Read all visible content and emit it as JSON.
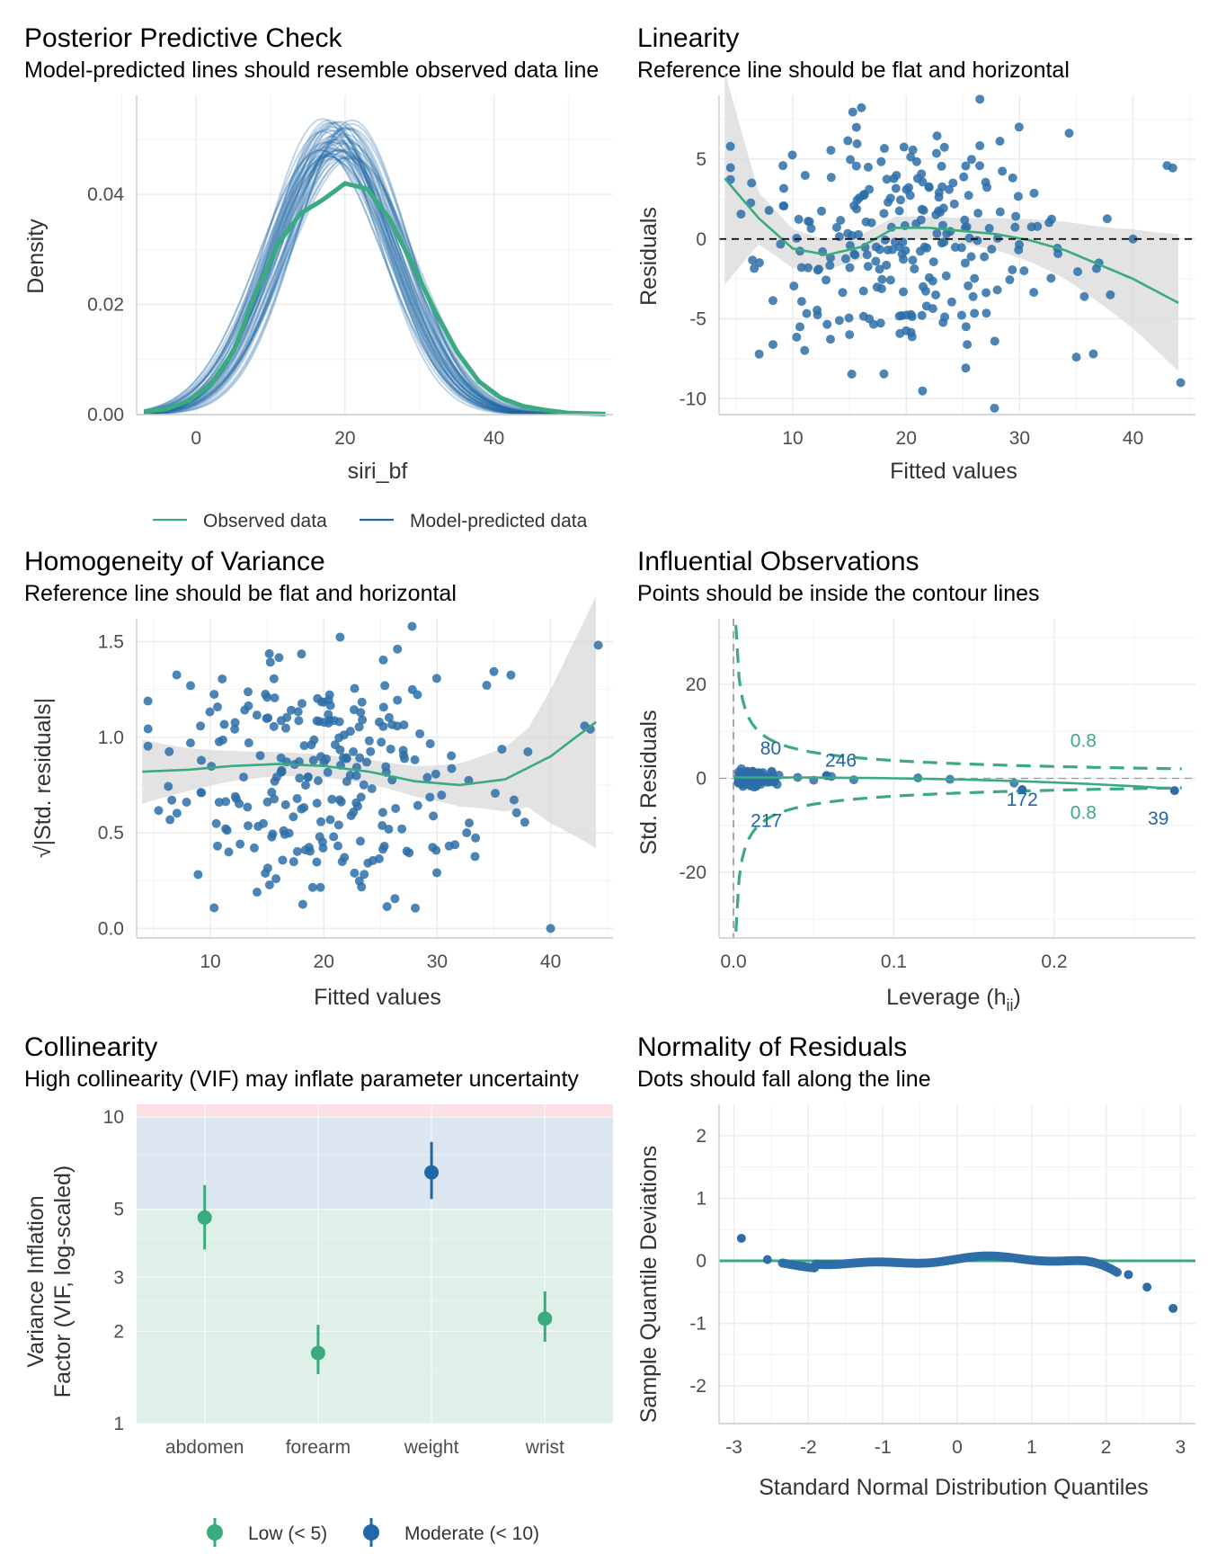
{
  "colors": {
    "observed": "#3aaa7f",
    "predicted": "#1f67a6",
    "point": "#2d6ea8",
    "ribbon": "#d9d9d9",
    "zone_low": "#dff0e8",
    "zone_moderate": "#dbe6f1",
    "zone_high": "#fbe0e4"
  },
  "panels": {
    "ppc": {
      "title": "Posterior Predictive Check",
      "subtitle": "Model-predicted lines should resemble observed data line",
      "xlabel": "siri_bf",
      "ylabel": "Density",
      "legend": [
        "Observed data",
        "Model-predicted data"
      ]
    },
    "linearity": {
      "title": "Linearity",
      "subtitle": "Reference line should be flat and horizontal",
      "xlabel": "Fitted values",
      "ylabel": "Residuals"
    },
    "homogeneity": {
      "title": "Homogeneity of Variance",
      "subtitle": "Reference line should be flat and horizontal",
      "xlabel": "Fitted values",
      "ylabel": "√|Std. residuals|"
    },
    "influential": {
      "title": "Influential Observations",
      "subtitle": "Points should be inside the contour lines",
      "xlabel": "Leverage (h",
      "xlabel_sub": "ii",
      "xlabel_end": ")",
      "ylabel": "Std. Residuals"
    },
    "collinearity": {
      "title": "Collinearity",
      "subtitle": "High collinearity (VIF) may inflate parameter uncertainty",
      "ylabel_line1": "Variance Inflation",
      "ylabel_line2": "Factor (VIF, log-scaled)",
      "legend": [
        "Low (< 5)",
        "Moderate (< 10)"
      ]
    },
    "normality": {
      "title": "Normality of Residuals",
      "subtitle": "Dots should fall along the line",
      "xlabel": "Standard Normal Distribution Quantiles",
      "ylabel": "Sample Quantile Deviations"
    }
  },
  "chart_data": [
    {
      "id": "ppc",
      "type": "line",
      "title": "Posterior Predictive Check",
      "xlabel": "siri_bf",
      "ylabel": "Density",
      "xlim": [
        -8,
        56
      ],
      "ylim": [
        0,
        0.058
      ],
      "x_ticks": [
        0,
        20,
        40
      ],
      "y_ticks": [
        0.0,
        0.02,
        0.04
      ],
      "y_tick_labels": [
        "0.00",
        "0.02",
        "0.04"
      ],
      "series": [
        {
          "name": "Observed data",
          "x": [
            -7,
            -4,
            -1,
            2,
            5,
            8,
            11,
            14,
            17,
            20,
            23,
            26,
            29,
            32,
            35,
            38,
            41,
            44,
            47,
            50,
            55
          ],
          "values": [
            0.0005,
            0.001,
            0.0025,
            0.0055,
            0.0115,
            0.022,
            0.031,
            0.0365,
            0.039,
            0.042,
            0.041,
            0.0355,
            0.0275,
            0.019,
            0.0115,
            0.006,
            0.003,
            0.0015,
            0.0008,
            0.0003,
            0.0001
          ]
        },
        {
          "name": "Model-predicted data",
          "draws": "~50 posterior predictive density curves peaking 0.041–0.054 near siri_bf 16–21"
        }
      ]
    },
    {
      "id": "linearity",
      "type": "scatter",
      "title": "Linearity",
      "xlabel": "Fitted values",
      "ylabel": "Residuals",
      "xlim": [
        3.5,
        45.5
      ],
      "ylim": [
        -11,
        9
      ],
      "x_ticks": [
        10,
        20,
        30,
        40
      ],
      "y_ticks": [
        -10,
        -5,
        0,
        5
      ],
      "reference_line": 0,
      "smooth": {
        "x": [
          4,
          7,
          10,
          13,
          16,
          19,
          22,
          25,
          28,
          31,
          34,
          37,
          40,
          44
        ],
        "values": [
          3.8,
          1.3,
          -0.6,
          -1.0,
          -0.5,
          0.7,
          0.7,
          0.5,
          0.3,
          -0.1,
          -0.7,
          -1.6,
          -2.5,
          -4.0
        ]
      },
      "n_points": 249
    },
    {
      "id": "homogeneity",
      "type": "scatter",
      "title": "Homogeneity of Variance",
      "xlabel": "Fitted values",
      "ylabel": "√|Std. residuals|",
      "xlim": [
        3.5,
        45.5
      ],
      "ylim": [
        -0.05,
        1.62
      ],
      "x_ticks": [
        10,
        20,
        30,
        40
      ],
      "y_ticks": [
        0.0,
        0.5,
        1.0,
        1.5
      ],
      "y_tick_labels": [
        "0.0",
        "0.5",
        "1.0",
        "1.5"
      ],
      "smooth": {
        "x": [
          4,
          8,
          12,
          16,
          20,
          24,
          28,
          32,
          36,
          40,
          44
        ],
        "values": [
          0.82,
          0.83,
          0.85,
          0.86,
          0.85,
          0.82,
          0.77,
          0.75,
          0.78,
          0.9,
          1.08
        ]
      },
      "n_points": 249
    },
    {
      "id": "influential",
      "type": "scatter",
      "title": "Influential Observations",
      "xlabel": "Leverage (hii)",
      "ylabel": "Std. Residuals",
      "xlim": [
        -0.009,
        0.288
      ],
      "ylim": [
        -34,
        34
      ],
      "x_ticks": [
        0.0,
        0.1,
        0.2
      ],
      "x_tick_labels": [
        "0.0",
        "0.1",
        "0.2"
      ],
      "y_ticks": [
        -20,
        0,
        20
      ],
      "cook_contour_level": 0.8,
      "labeled_points": [
        {
          "label": "80",
          "x": 0.012,
          "y": 1.5
        },
        {
          "label": "246",
          "x": 0.058,
          "y": 0.6
        },
        {
          "label": "217",
          "x": 0.011,
          "y": -1.5
        },
        {
          "label": "172",
          "x": 0.18,
          "y": -2.4
        },
        {
          "label": "39",
          "x": 0.275,
          "y": -2.6
        }
      ]
    },
    {
      "id": "collinearity",
      "type": "scatter",
      "title": "Collinearity",
      "ylabel": "Variance Inflation Factor (VIF, log-scaled)",
      "log_scale": true,
      "ylim": [
        1,
        11
      ],
      "y_ticks": [
        1,
        2,
        3,
        5,
        10
      ],
      "categories": [
        "abdomen",
        "forearm",
        "weight",
        "wrist"
      ],
      "values": [
        4.7,
        1.7,
        6.6,
        2.2
      ],
      "ci_low": [
        3.7,
        1.45,
        5.4,
        1.85
      ],
      "ci_high": [
        6.0,
        2.1,
        8.3,
        2.7
      ],
      "groups": [
        "Low (< 5)",
        "Low (< 5)",
        "Moderate (< 10)",
        "Low (< 5)"
      ],
      "zones": [
        {
          "name": "Low (< 5)",
          "range": [
            1,
            5
          ]
        },
        {
          "name": "Moderate (< 10)",
          "range": [
            5,
            10
          ]
        },
        {
          "name": "High",
          "range": [
            10,
            11
          ]
        }
      ]
    },
    {
      "id": "normality",
      "type": "scatter",
      "title": "Normality of Residuals",
      "xlabel": "Standard Normal Distribution Quantiles",
      "ylabel": "Sample Quantile Deviations",
      "xlim": [
        -3.2,
        3.2
      ],
      "ylim": [
        -2.6,
        2.5
      ],
      "x_ticks": [
        -3,
        -2,
        -1,
        0,
        1,
        2,
        3
      ],
      "y_ticks": [
        -2,
        -1,
        0,
        1,
        2
      ],
      "reference_line": 0,
      "extreme_points": [
        {
          "x": -2.9,
          "y": 0.36
        },
        {
          "x": -2.55,
          "y": 0.02
        },
        {
          "x": 2.3,
          "y": -0.22
        },
        {
          "x": 2.55,
          "y": -0.42
        },
        {
          "x": 2.9,
          "y": -0.76
        }
      ]
    }
  ]
}
